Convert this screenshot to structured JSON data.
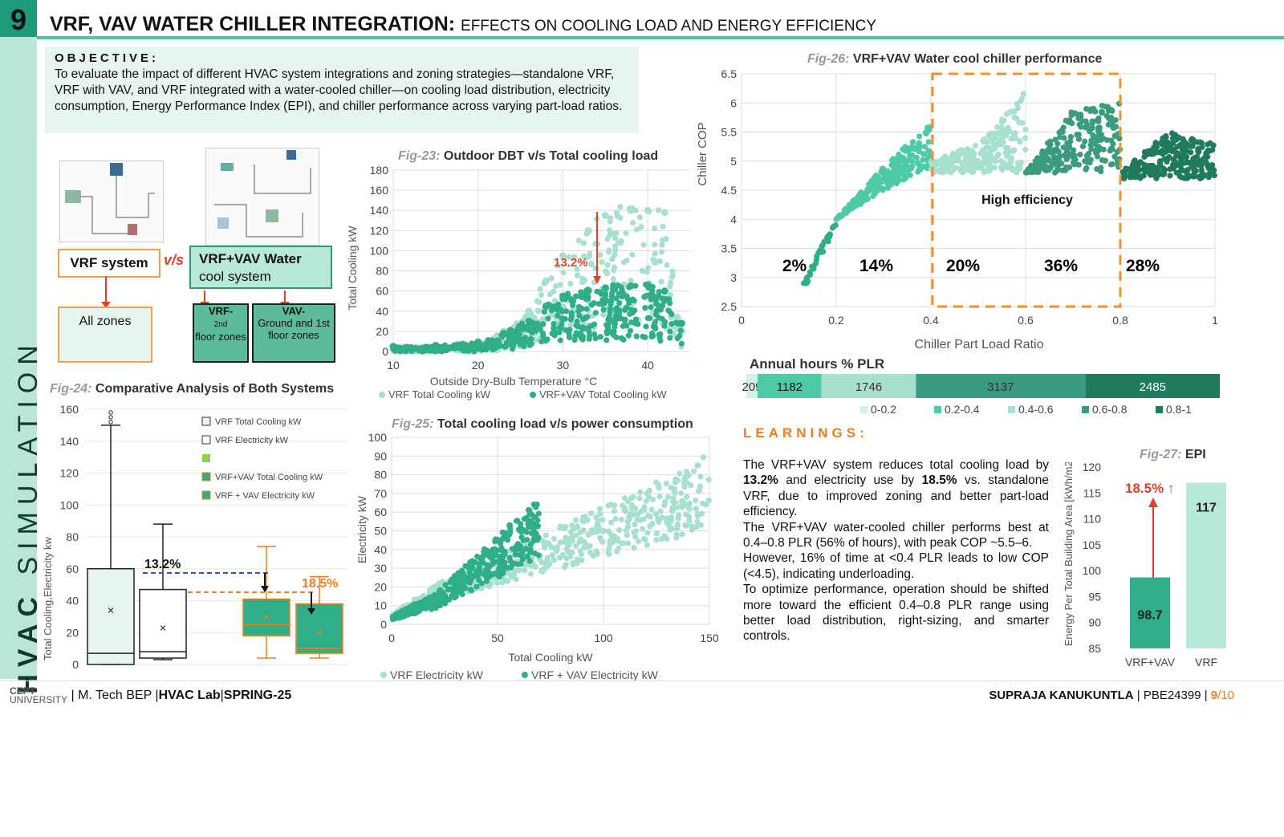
{
  "header": {
    "page_number": "9",
    "title_bold": "VRF, VAV WATER CHILLER INTEGRATION:",
    "title_sub": "EFFECTS ON COOLING LOAD AND ENERGY EFFICIENCY",
    "side_label_bold": "HVAC",
    "side_label_rest": "SIMULATION"
  },
  "objective": {
    "heading": "OBJECTIVE:",
    "text": "To evaluate the impact of different HVAC system integrations and zoning strategies—standalone VRF, VRF with VAV, and VRF integrated with a water-cooled chiller—on cooling load distribution, electricity consumption, Energy Performance Index (EPI), and chiller performance across varying part-load ratios."
  },
  "diagram": {
    "vrf_label": "VRF system",
    "vs_label": "v/s",
    "vav_label_bold": "VRF+VAV Water",
    "vav_label_rest": "cool system",
    "all_zones": "All zones",
    "vrf_zone_a": "VRF-",
    "vrf_zone_b": "2nd",
    "vrf_zone_c": "floor zones",
    "vav_zone_a": "VAV-",
    "vav_zone_b": "Ground and 1st floor zones"
  },
  "fig23": {
    "num": "Fig-23:",
    "title": "Outdoor DBT v/s Total cooling load",
    "xlabel": "Outside Dry-Bulb Temperature °C",
    "ylabel": "Total Cooling kW",
    "annotation": "13.2%",
    "legend": [
      "VRF Total Cooling kW",
      "VRF+VAV Total Cooling kW"
    ]
  },
  "fig24": {
    "num": "Fig-24:",
    "title": "Comparative Analysis of Both Systems",
    "ylabel": "Total Cooling,Electricity kw",
    "legend": [
      "VRF Total Cooling kW",
      "VRF Electricity kW",
      "",
      "VRF+VAV Total Cooling kW",
      "VRF + VAV Electricity kW"
    ],
    "annot1": "13.2%",
    "annot2": "18.5%"
  },
  "fig25": {
    "num": "Fig-25:",
    "title": "Total cooling load v/s power consumption",
    "xlabel": "Total Cooling kW",
    "ylabel": "Electricity kW",
    "legend": [
      "VRF Electricity kW",
      "VRF + VAV Electricity kW"
    ]
  },
  "fig26": {
    "num": "Fig-26:",
    "title": "VRF+VAV Water cool chiller performance",
    "xlabel": "Chiller Part Load Ratio",
    "ylabel": "Chiller COP",
    "annotation": "High efficiency",
    "band_labels": [
      "2%",
      "14%",
      "20%",
      "36%",
      "28%"
    ]
  },
  "annual": {
    "title": "Annual hours % PLR",
    "legend": [
      "0-0.2",
      "0.2-0.4",
      "0.4-0.6",
      "0.6-0.8",
      "0.8-1"
    ]
  },
  "fig27": {
    "num": "Fig-27:",
    "title": "EPI",
    "ylabel": "Energy Per Total Building Area [kWh/m2]",
    "annotation": "18.5% ↑"
  },
  "learnings": {
    "heading": "LEARNINGS:",
    "p1_a": "The VRF+VAV system reduces total cooling load by ",
    "p1_b": "13.2%",
    "p1_c": " and electricity use by ",
    "p1_d": "18.5%",
    "p1_e": " vs. standalone VRF, due to improved zoning and better part-load efficiency.",
    "p2": "The VRF+VAV water-cooled chiller performs best at 0.4–0.8 PLR (56% of hours), with peak COP ~5.5–6.",
    "p3": "However, 16% of time at <0.4 PLR leads to low COP (<4.5), indicating underloading.",
    "p4": "To optimize performance, operation should be shifted more toward the efficient 0.4–0.8 PLR range using better load distribution, right-sizing, and smarter controls."
  },
  "footer": {
    "logo_top": "CEPT",
    "logo_bottom": "UNIVERSITY",
    "program": "M. Tech BEP",
    "lab": "HVAC Lab",
    "term": "SPRING-25",
    "author": "SUPRAJA KANUKUNTLA",
    "id": "PBE24399",
    "page": "9",
    "total": "/10"
  },
  "colors": {
    "light_teal": "#a8e0cf",
    "mid_teal": "#2fae88",
    "dark_teal": "#1f7a5e",
    "orange": "#f07c1c",
    "red": "#e0402a"
  },
  "chart_data": [
    {
      "type": "scatter",
      "title": "Outdoor DBT v/s Total cooling load",
      "xlabel": "Outside Dry-Bulb Temperature °C",
      "ylabel": "Total Cooling kW",
      "xlim": [
        10,
        45
      ],
      "ylim": [
        0,
        180
      ],
      "xticks": [
        10,
        20,
        30,
        40
      ],
      "yticks": [
        0,
        20,
        40,
        60,
        80,
        100,
        120,
        140,
        160,
        180
      ],
      "series": [
        {
          "name": "VRF Total Cooling kW",
          "x": [
            10,
            15,
            20,
            23,
            26,
            28,
            30,
            33,
            35,
            38,
            40,
            42,
            44
          ],
          "y": [
            5,
            6,
            10,
            20,
            40,
            70,
            95,
            120,
            135,
            140,
            140,
            138,
            20
          ]
        },
        {
          "name": "VRF+VAV Total Cooling kW",
          "x": [
            10,
            15,
            20,
            23,
            26,
            28,
            30,
            33,
            35,
            38,
            40,
            42,
            44
          ],
          "y": [
            5,
            6,
            9,
            18,
            30,
            45,
            55,
            60,
            63,
            65,
            66,
            60,
            28
          ]
        }
      ]
    },
    {
      "type": "box",
      "title": "Comparative Analysis of Both Systems",
      "ylabel": "Total Cooling,Electricity kw",
      "ylim": [
        0,
        160
      ],
      "yticks": [
        0,
        20,
        40,
        60,
        80,
        100,
        120,
        140,
        160
      ],
      "series": [
        {
          "name": "VRF Total Cooling kW",
          "min": 0,
          "q1": 0,
          "median": 7,
          "q3": 60,
          "max": 150,
          "mean": 34
        },
        {
          "name": "VRF Electricity kW",
          "min": 3,
          "q1": 4,
          "median": 8,
          "q3": 47,
          "max": 88,
          "mean": 23
        },
        {
          "name": "VRF+VAV Total Cooling kW",
          "min": 4,
          "q1": 18,
          "median": 25,
          "q3": 41,
          "max": 74,
          "mean": 30
        },
        {
          "name": "VRF + VAV Electricity kW",
          "min": 4,
          "q1": 7,
          "median": 10,
          "q3": 38,
          "max": 55,
          "mean": 20
        }
      ]
    },
    {
      "type": "scatter",
      "title": "Total cooling load v/s power consumption",
      "xlabel": "Total Cooling kW",
      "ylabel": "Electricity kW",
      "xlim": [
        0,
        150
      ],
      "ylim": [
        0,
        100
      ],
      "xticks": [
        0,
        50,
        100,
        150
      ],
      "yticks": [
        0,
        10,
        20,
        30,
        40,
        50,
        60,
        70,
        80,
        90,
        100
      ],
      "series": [
        {
          "name": "VRF Electricity kW",
          "x": [
            0,
            20,
            40,
            60,
            80,
            100,
            120,
            140,
            150
          ],
          "y": [
            5,
            20,
            30,
            40,
            50,
            60,
            70,
            80,
            88
          ]
        },
        {
          "name": "VRF + VAV Electricity kW",
          "x": [
            0,
            10,
            20,
            30,
            40,
            50,
            60,
            70
          ],
          "y": [
            4,
            10,
            15,
            25,
            35,
            45,
            55,
            65
          ]
        }
      ]
    },
    {
      "type": "scatter",
      "title": "VRF+VAV Water cool chiller performance",
      "xlabel": "Chiller Part Load Ratio",
      "ylabel": "Chiller COP",
      "xlim": [
        0,
        1
      ],
      "ylim": [
        2.5,
        6.5
      ],
      "xticks": [
        0,
        0.2,
        0.4,
        0.6,
        0.8,
        1
      ],
      "yticks": [
        2.5,
        3,
        3.5,
        4,
        4.5,
        5,
        5.5,
        6,
        6.5
      ],
      "series": [
        {
          "name": "0-0.2",
          "x": [
            0.13,
            0.16,
            0.2
          ],
          "y": [
            2.9,
            3.4,
            4.0
          ]
        },
        {
          "name": "0.2-0.4",
          "x": [
            0.2,
            0.3,
            0.4
          ],
          "y": [
            4.0,
            4.9,
            5.7
          ]
        },
        {
          "name": "0.4-0.6",
          "x": [
            0.4,
            0.5,
            0.6
          ],
          "y": [
            5.0,
            5.3,
            6.2
          ]
        },
        {
          "name": "0.6-0.8",
          "x": [
            0.6,
            0.7,
            0.8
          ],
          "y": [
            4.8,
            5.9,
            6.0
          ]
        },
        {
          "name": "0.8-1",
          "x": [
            0.8,
            0.9,
            1.0
          ],
          "y": [
            4.8,
            5.5,
            5.3
          ]
        }
      ]
    },
    {
      "type": "bar",
      "title": "Annual hours % PLR",
      "stacked": true,
      "categories": [
        "0-0.2",
        "0.2-0.4",
        "0.4-0.6",
        "0.6-0.8",
        "0.8-1"
      ],
      "values": [
        209,
        1182,
        1746,
        3137,
        2485
      ]
    },
    {
      "type": "bar",
      "title": "EPI",
      "ylabel": "Energy Per Total Building Area [kWh/m2]",
      "categories": [
        "VRF+VAV",
        "VRF"
      ],
      "values": [
        98.7,
        117
      ],
      "ylim": [
        85,
        120
      ],
      "yticks": [
        85,
        90,
        95,
        100,
        105,
        110,
        115,
        120
      ]
    }
  ]
}
